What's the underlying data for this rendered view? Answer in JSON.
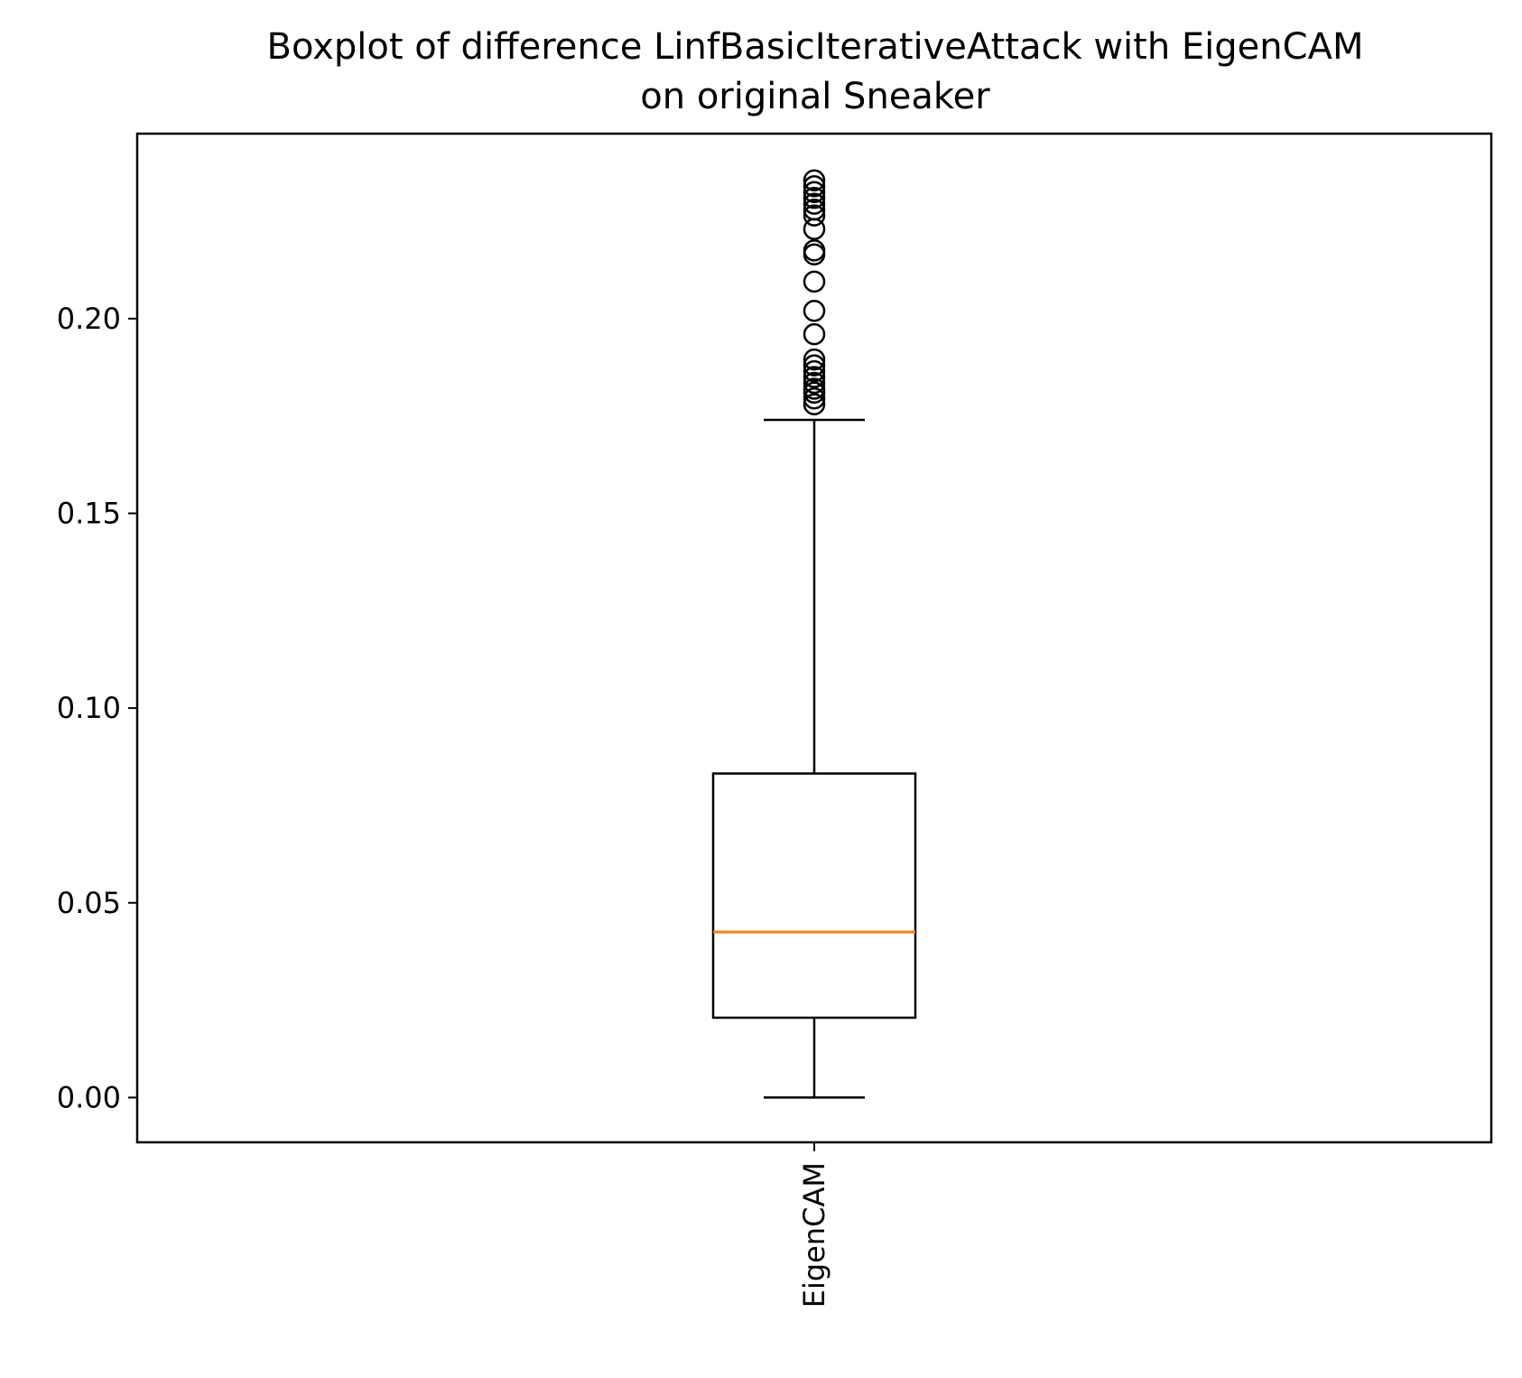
{
  "chart_data": {
    "type": "boxplot",
    "title_lines": [
      "Boxplot of difference LinfBasicIterativeAttack with EigenCAM",
      "on original Sneaker"
    ],
    "xlabel": "",
    "ylabel": "",
    "categories": [
      "EigenCAM"
    ],
    "y_ticks": [
      0.0,
      0.05,
      0.1,
      0.15,
      0.2
    ],
    "y_tick_labels": [
      "0.00",
      "0.05",
      "0.10",
      "0.15",
      "0.20"
    ],
    "ylim": [
      -0.0115,
      0.2475
    ],
    "grid": false,
    "legend": "none",
    "boxes": [
      {
        "name": "EigenCAM",
        "whisker_low": 0.0,
        "q1": 0.0205,
        "median": 0.0425,
        "q3": 0.0832,
        "whisker_high": 0.174,
        "outliers": [
          0.178,
          0.1795,
          0.181,
          0.182,
          0.1835,
          0.185,
          0.1865,
          0.188,
          0.1895,
          0.196,
          0.202,
          0.2095,
          0.2165,
          0.2175,
          0.223,
          0.2265,
          0.228,
          0.2295,
          0.231,
          0.2325,
          0.234,
          0.2355
        ]
      }
    ],
    "colors": {
      "box": "#000000",
      "median": "#ff7f0e",
      "outlier_edge": "#000000"
    }
  }
}
